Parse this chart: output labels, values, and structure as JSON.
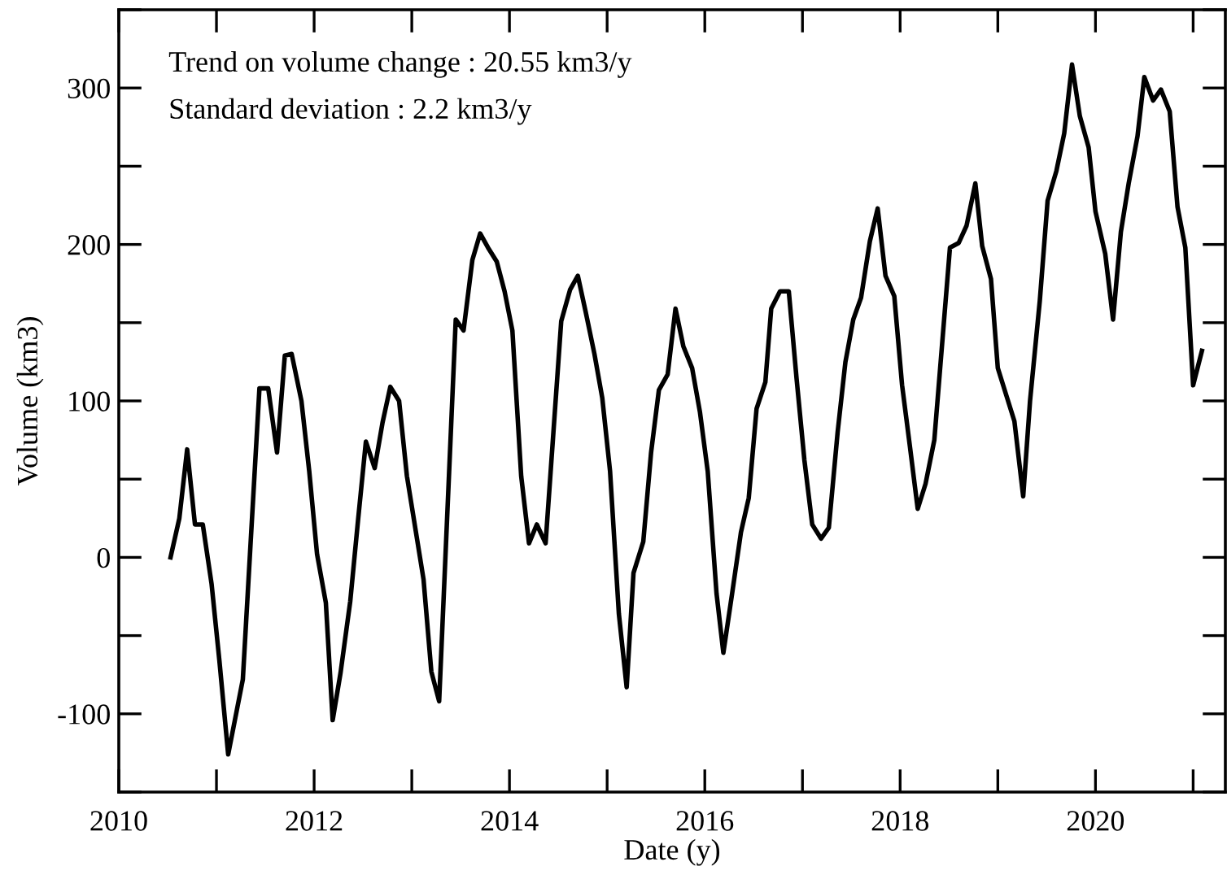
{
  "chart_data": {
    "type": "line",
    "xlabel": "Date (y)",
    "ylabel": "Volume (km3)",
    "annotations": [
      "Trend on volume change : 20.55 km3/y",
      "Standard deviation : 2.2 km3/y"
    ],
    "xlim": [
      2010,
      2021.33
    ],
    "ylim": [
      -150,
      350
    ],
    "xticks": [
      2010,
      {
        "value": 2011,
        "label": null
      },
      2012,
      {
        "value": 2013,
        "label": null
      },
      2014,
      {
        "value": 2015,
        "label": null
      },
      2016,
      {
        "value": 2017,
        "label": null
      },
      2018,
      {
        "value": 2019,
        "label": null
      },
      2020,
      {
        "value": 2021,
        "label": null
      }
    ],
    "yticks": [
      {
        "value": -150,
        "label": null
      },
      -100,
      {
        "value": -50,
        "label": null
      },
      0,
      {
        "value": 50,
        "label": null
      },
      100,
      {
        "value": 150,
        "label": null
      },
      200,
      {
        "value": 250,
        "label": null
      },
      300,
      {
        "value": 350,
        "label": null
      }
    ],
    "grid": false,
    "marker": "none",
    "line_style": "solid",
    "series": [
      {
        "color": "#000000",
        "x": [
          2010.53,
          2010.62,
          2010.7,
          2010.78,
          2010.86,
          2010.95,
          2011.03,
          2011.12,
          2011.27,
          2011.44,
          2011.53,
          2011.62,
          2011.7,
          2011.77,
          2011.87,
          2011.95,
          2012.03,
          2012.12,
          2012.19,
          2012.27,
          2012.37,
          2012.45,
          2012.53,
          2012.62,
          2012.7,
          2012.78,
          2012.87,
          2012.95,
          2013.12,
          2013.2,
          2013.28,
          2013.45,
          2013.53,
          2013.62,
          2013.7,
          2013.78,
          2013.87,
          2013.95,
          2014.03,
          2014.12,
          2014.2,
          2014.28,
          2014.37,
          2014.45,
          2014.53,
          2014.62,
          2014.7,
          2014.78,
          2014.87,
          2014.95,
          2015.03,
          2015.12,
          2015.2,
          2015.27,
          2015.37,
          2015.45,
          2015.53,
          2015.62,
          2015.7,
          2015.78,
          2015.87,
          2015.95,
          2016.03,
          2016.12,
          2016.19,
          2016.28,
          2016.37,
          2016.45,
          2016.53,
          2016.62,
          2016.68,
          2016.77,
          2016.86,
          2016.94,
          2017.02,
          2017.1,
          2017.19,
          2017.27,
          2017.36,
          2017.44,
          2017.52,
          2017.6,
          2017.69,
          2017.77,
          2017.85,
          2017.94,
          2018.02,
          2018.1,
          2018.18,
          2018.26,
          2018.35,
          2018.51,
          2018.6,
          2018.68,
          2018.77,
          2018.84,
          2018.93,
          2019.0,
          2019.09,
          2019.17,
          2019.26,
          2019.33,
          2019.43,
          2019.51,
          2019.6,
          2019.68,
          2019.76,
          2019.84,
          2019.93,
          2020.0,
          2020.1,
          2020.18,
          2020.26,
          2020.34,
          2020.43,
          2020.5,
          2020.59,
          2020.67,
          2020.76,
          2020.84,
          2020.92,
          2021.0,
          2021.09
        ],
        "values": [
          0,
          25,
          69,
          21,
          21,
          -17,
          -66,
          -126,
          -78,
          108,
          108,
          67,
          129,
          130,
          100,
          55,
          2,
          -29,
          -104,
          -74,
          -28,
          24,
          74,
          57,
          86,
          109,
          100,
          52,
          -14,
          -73,
          -92,
          152,
          145,
          190,
          207,
          198,
          189,
          170,
          145,
          52,
          9,
          21,
          9,
          80,
          151,
          171,
          180,
          157,
          130,
          102,
          55,
          -36,
          -83,
          -10,
          10,
          67,
          107,
          117,
          159,
          135,
          121,
          93,
          55,
          -23,
          -61,
          -23,
          16,
          38,
          95,
          112,
          159,
          170,
          170,
          114,
          62,
          21,
          12,
          19,
          80,
          125,
          152,
          166,
          202,
          223,
          180,
          167,
          110,
          71,
          31,
          47,
          75,
          198,
          201,
          212,
          239,
          199,
          178,
          121,
          103,
          87,
          39,
          100,
          164,
          228,
          247,
          271,
          315,
          282,
          262,
          221,
          194,
          152,
          208,
          239,
          269,
          307,
          292,
          299,
          285,
          224,
          198,
          110,
          132
        ]
      }
    ]
  }
}
